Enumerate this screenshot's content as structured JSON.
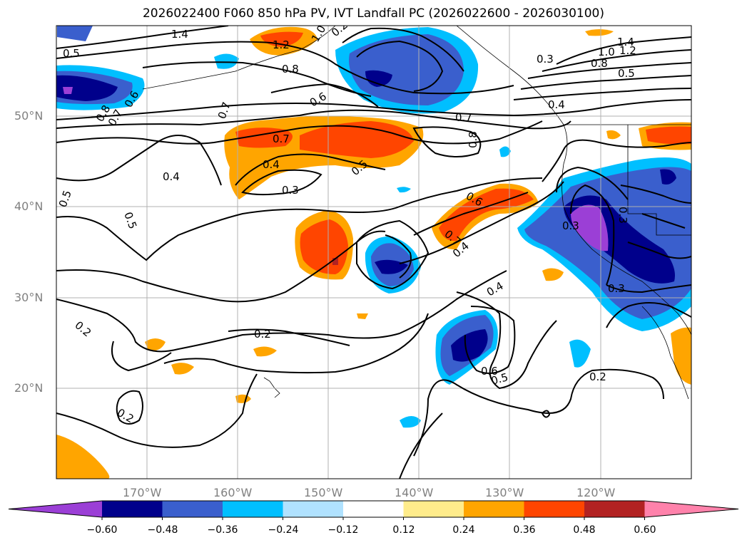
{
  "title": "2026022400 F060 850 hPa PV, IVT Landfall PC (2026022600 - 2026030100)",
  "axes": {
    "lon_ticks": [
      "170°W",
      "160°W",
      "150°W",
      "140°W",
      "130°W",
      "120°W"
    ],
    "lat_ticks": [
      "50°N",
      "40°N",
      "30°N",
      "20°N"
    ]
  },
  "colorbar": {
    "colors": [
      "#9b3fd6",
      "#00008b",
      "#3a5fcd",
      "#00bfff",
      "#b0e2ff",
      "#ffffff",
      "#ffec8b",
      "#ffa500",
      "#ff4500",
      "#b22222",
      "#ff82ab"
    ],
    "tick_labels": [
      "−0.60",
      "−0.48",
      "−0.36",
      "−0.24",
      "−0.12",
      "0.12",
      "0.24",
      "0.36",
      "0.48",
      "0.60"
    ]
  },
  "contour_labels": [
    "1.4",
    "1.2",
    "1.0",
    "0.5",
    "0.7",
    "0.8",
    "0.6",
    "0.7",
    "0.8",
    "0.6",
    "0.4",
    "0.7",
    "0.4",
    "0.3",
    "0.5",
    "0.7",
    "0.8",
    "0.3",
    "0.4",
    "1.4",
    "1.2",
    "1.0",
    "0.8",
    "0.5",
    "0.5",
    "0.5",
    "0.6",
    "0.7",
    "0.4",
    "0.3",
    "0.3",
    "0.3",
    "0.4",
    "0.2",
    "0.2",
    "0.2",
    "0.6",
    "0.5",
    "0.2",
    "0.2"
  ]
}
